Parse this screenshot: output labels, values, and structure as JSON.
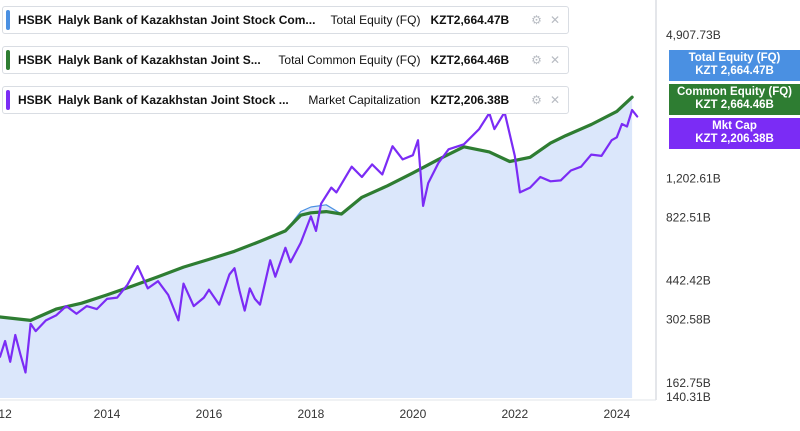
{
  "legend": [
    {
      "ticker": "HSBK",
      "company": "Halyk Bank of Kazakhstan Joint Stock Com...",
      "metric": "Total Equity (FQ)",
      "value": "KZT2,664.47B",
      "color": "#4a90e2"
    },
    {
      "ticker": "HSBK",
      "company": "Halyk Bank of Kazakhstan Joint S...",
      "metric": "Total Common Equity (FQ)",
      "value": "KZT2,664.46B",
      "color": "#2e7d32"
    },
    {
      "ticker": "HSBK",
      "company": "Halyk Bank of Kazakhstan Joint Stock ...",
      "metric": "Market Capitalization",
      "value": "KZT2,206.38B",
      "color": "#7b2cf5"
    }
  ],
  "flags": [
    {
      "line1": "Total Equity (FQ)",
      "line2": "KZT 2,664.47B",
      "color": "#4a90e2"
    },
    {
      "line1": "Common Equity (FQ)",
      "line2": "KZT 2,664.46B",
      "color": "#2e7d32"
    },
    {
      "line1": "Mkt Cap",
      "line2": "KZT 2,206.38B",
      "color": "#7b2cf5"
    }
  ],
  "icons": {
    "settings": "gear-icon",
    "close": "close-icon"
  },
  "chart_data": {
    "type": "line",
    "x_ticks": [
      "12",
      "2014",
      "2016",
      "2018",
      "2020",
      "2022",
      "2024"
    ],
    "y_ticks": [
      "4,907.73B",
      "1,202.61B",
      "822.51B",
      "442.42B",
      "302.58B",
      "162.75B",
      "140.31B"
    ],
    "y_scale": "log",
    "series": [
      {
        "name": "Total Equity (FQ)",
        "color": "#4a90e2",
        "area": true,
        "points": [
          [
            2011.9,
            310
          ],
          [
            2012.5,
            300
          ],
          [
            2013.0,
            335
          ],
          [
            2013.5,
            355
          ],
          [
            2014.0,
            385
          ],
          [
            2014.5,
            420
          ],
          [
            2015.0,
            460
          ],
          [
            2015.5,
            505
          ],
          [
            2016.0,
            545
          ],
          [
            2016.5,
            590
          ],
          [
            2017.0,
            650
          ],
          [
            2017.5,
            720
          ],
          [
            2017.8,
            870
          ],
          [
            2018.0,
            910
          ],
          [
            2018.3,
            930
          ],
          [
            2018.6,
            850
          ],
          [
            2019.0,
            1000
          ],
          [
            2019.5,
            1120
          ],
          [
            2020.0,
            1270
          ],
          [
            2020.5,
            1450
          ],
          [
            2021.0,
            1640
          ],
          [
            2021.5,
            1560
          ],
          [
            2021.9,
            1420
          ],
          [
            2022.3,
            1480
          ],
          [
            2022.7,
            1700
          ],
          [
            2023.0,
            1830
          ],
          [
            2023.5,
            2040
          ],
          [
            2024.0,
            2320
          ],
          [
            2024.3,
            2664.47
          ]
        ]
      },
      {
        "name": "Total Common Equity (FQ)",
        "color": "#2e7d32",
        "area": false,
        "points": [
          [
            2011.9,
            310
          ],
          [
            2012.5,
            300
          ],
          [
            2013.0,
            335
          ],
          [
            2013.5,
            355
          ],
          [
            2014.0,
            385
          ],
          [
            2014.5,
            420
          ],
          [
            2015.0,
            460
          ],
          [
            2015.5,
            505
          ],
          [
            2016.0,
            545
          ],
          [
            2016.5,
            590
          ],
          [
            2017.0,
            650
          ],
          [
            2017.5,
            720
          ],
          [
            2017.8,
            840
          ],
          [
            2018.0,
            860
          ],
          [
            2018.3,
            870
          ],
          [
            2018.6,
            850
          ],
          [
            2019.0,
            1000
          ],
          [
            2019.5,
            1120
          ],
          [
            2020.0,
            1270
          ],
          [
            2020.5,
            1450
          ],
          [
            2021.0,
            1640
          ],
          [
            2021.5,
            1560
          ],
          [
            2021.9,
            1420
          ],
          [
            2022.3,
            1480
          ],
          [
            2022.7,
            1700
          ],
          [
            2023.0,
            1830
          ],
          [
            2023.5,
            2040
          ],
          [
            2024.0,
            2320
          ],
          [
            2024.3,
            2664.46
          ]
        ]
      },
      {
        "name": "Market Capitalization",
        "color": "#7b2cf5",
        "area": false,
        "points": [
          [
            2011.9,
            210
          ],
          [
            2012.0,
            245
          ],
          [
            2012.1,
            200
          ],
          [
            2012.2,
            260
          ],
          [
            2012.3,
            215
          ],
          [
            2012.4,
            180
          ],
          [
            2012.5,
            290
          ],
          [
            2012.6,
            270
          ],
          [
            2012.8,
            300
          ],
          [
            2013.0,
            315
          ],
          [
            2013.2,
            345
          ],
          [
            2013.4,
            320
          ],
          [
            2013.6,
            345
          ],
          [
            2013.8,
            335
          ],
          [
            2014.0,
            370
          ],
          [
            2014.2,
            375
          ],
          [
            2014.4,
            425
          ],
          [
            2014.6,
            510
          ],
          [
            2014.8,
            410
          ],
          [
            2015.0,
            440
          ],
          [
            2015.2,
            385
          ],
          [
            2015.4,
            300
          ],
          [
            2015.5,
            430
          ],
          [
            2015.7,
            345
          ],
          [
            2015.9,
            375
          ],
          [
            2016.0,
            405
          ],
          [
            2016.2,
            350
          ],
          [
            2016.4,
            470
          ],
          [
            2016.5,
            500
          ],
          [
            2016.6,
            400
          ],
          [
            2016.7,
            330
          ],
          [
            2016.8,
            410
          ],
          [
            2016.9,
            370
          ],
          [
            2017.0,
            350
          ],
          [
            2017.2,
            540
          ],
          [
            2017.3,
            460
          ],
          [
            2017.5,
            610
          ],
          [
            2017.6,
            530
          ],
          [
            2017.8,
            640
          ],
          [
            2018.0,
            830
          ],
          [
            2018.1,
            720
          ],
          [
            2018.2,
            940
          ],
          [
            2018.4,
            1100
          ],
          [
            2018.5,
            1050
          ],
          [
            2018.8,
            1350
          ],
          [
            2019.0,
            1220
          ],
          [
            2019.2,
            1380
          ],
          [
            2019.4,
            1250
          ],
          [
            2019.6,
            1650
          ],
          [
            2019.8,
            1450
          ],
          [
            2020.0,
            1510
          ],
          [
            2020.1,
            1750
          ],
          [
            2020.2,
            920
          ],
          [
            2020.3,
            1150
          ],
          [
            2020.5,
            1400
          ],
          [
            2020.7,
            1600
          ],
          [
            2021.0,
            1680
          ],
          [
            2021.3,
            1950
          ],
          [
            2021.5,
            2280
          ],
          [
            2021.6,
            1950
          ],
          [
            2021.8,
            2300
          ],
          [
            2022.0,
            1500
          ],
          [
            2022.1,
            1050
          ],
          [
            2022.3,
            1100
          ],
          [
            2022.5,
            1220
          ],
          [
            2022.7,
            1170
          ],
          [
            2022.9,
            1180
          ],
          [
            2023.1,
            1300
          ],
          [
            2023.3,
            1350
          ],
          [
            2023.5,
            1520
          ],
          [
            2023.7,
            1500
          ],
          [
            2023.9,
            1750
          ],
          [
            2024.0,
            1800
          ],
          [
            2024.1,
            2050
          ],
          [
            2024.2,
            2000
          ],
          [
            2024.3,
            2350
          ],
          [
            2024.4,
            2206.38
          ]
        ]
      }
    ],
    "grid": false,
    "legend_position": "top-left"
  }
}
